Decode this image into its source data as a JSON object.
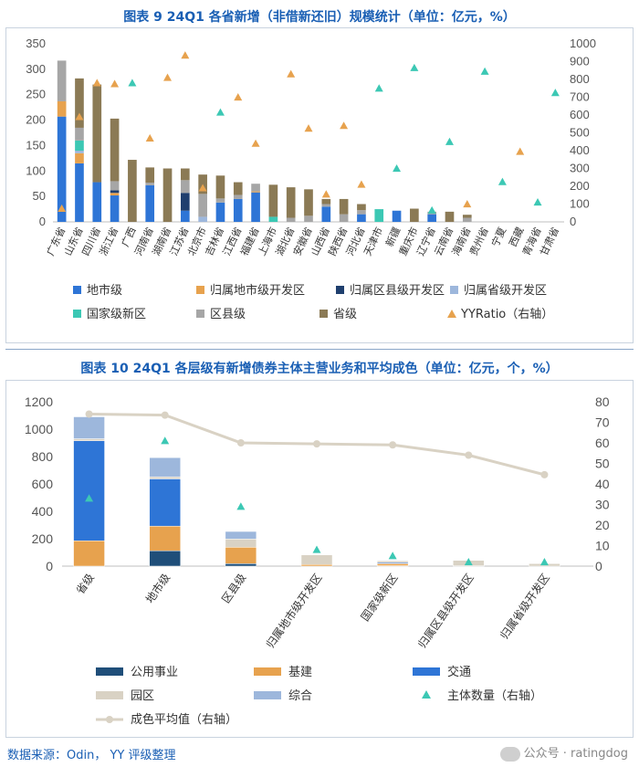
{
  "titles": {
    "chart1": "图表 9 24Q1 各省新增（非借新还旧）规模统计（单位：亿元，%）",
    "chart2": "图表 10 24Q1 各层级有新增债券主体主营业务和平均成色（单位：亿元，个，%）"
  },
  "footer": {
    "source": "数据来源：Odin， YY 评级整理",
    "watermark": "公众号 · ratingdog"
  },
  "chart_data": [
    {
      "type": "bar",
      "stacked": true,
      "title": "图表 9 24Q1 各省新增（非借新还旧）规模统计（单位：亿元，%）",
      "categories": [
        "广东省",
        "山东省",
        "四川省",
        "浙江省",
        "广西",
        "河南省",
        "湖南省",
        "江苏省",
        "北京市",
        "吉林省",
        "江西省",
        "福建省",
        "上海市",
        "湖北省",
        "安徽省",
        "山西省",
        "陕西省",
        "河北省",
        "天津市",
        "新疆",
        "重庆市",
        "辽宁省",
        "云南省",
        "海南省",
        "贵州省",
        "宁夏",
        "西藏",
        "青海省",
        "甘肃省"
      ],
      "ylim": [
        0,
        350
      ],
      "yticks": [
        0,
        50,
        100,
        150,
        200,
        250,
        300,
        350
      ],
      "y2lim": [
        0,
        1000
      ],
      "y2ticks": [
        0,
        100,
        200,
        300,
        400,
        500,
        600,
        700,
        800,
        900,
        1000
      ],
      "legend_position": "bottom",
      "series": [
        {
          "name": "地市级",
          "color": "#2e75d6",
          "values": [
            207,
            115,
            78,
            52,
            0,
            72,
            0,
            22,
            0,
            38,
            45,
            58,
            0,
            0,
            0,
            30,
            0,
            15,
            0,
            22,
            0,
            15,
            0,
            0,
            0,
            0,
            0,
            0,
            0
          ]
        },
        {
          "name": "归属地市级开发区",
          "color": "#e7a24e",
          "values": [
            30,
            20,
            0,
            5,
            0,
            0,
            0,
            0,
            0,
            0,
            0,
            2,
            0,
            0,
            0,
            0,
            0,
            0,
            0,
            0,
            0,
            0,
            0,
            0,
            0,
            0,
            0,
            0,
            0
          ]
        },
        {
          "name": "归属区县级开发区",
          "color": "#1f3f6e",
          "values": [
            0,
            0,
            0,
            5,
            0,
            0,
            0,
            35,
            0,
            0,
            0,
            0,
            0,
            0,
            0,
            0,
            0,
            0,
            0,
            0,
            0,
            0,
            0,
            0,
            0,
            0,
            0,
            0,
            0
          ]
        },
        {
          "name": "归属省级开发区",
          "color": "#9db7dc",
          "values": [
            0,
            5,
            0,
            0,
            0,
            0,
            0,
            0,
            10,
            0,
            0,
            0,
            0,
            0,
            0,
            0,
            0,
            0,
            0,
            0,
            0,
            0,
            0,
            0,
            0,
            0,
            0,
            0,
            0
          ]
        },
        {
          "name": "国家级新区",
          "color": "#3cc8b4",
          "values": [
            0,
            20,
            0,
            0,
            0,
            0,
            0,
            0,
            0,
            0,
            0,
            0,
            10,
            0,
            0,
            0,
            0,
            0,
            25,
            0,
            0,
            0,
            0,
            0,
            0,
            0,
            0,
            0,
            0
          ]
        },
        {
          "name": "区县级",
          "color": "#a6a6a6",
          "values": [
            80,
            25,
            0,
            18,
            0,
            5,
            0,
            25,
            45,
            8,
            8,
            15,
            0,
            8,
            12,
            5,
            15,
            8,
            0,
            0,
            0,
            5,
            0,
            8,
            0,
            0,
            0,
            0,
            0
          ]
        },
        {
          "name": "省级",
          "color": "#8b7a55",
          "values": [
            0,
            97,
            192,
            123,
            122,
            30,
            105,
            23,
            38,
            45,
            25,
            0,
            63,
            60,
            52,
            10,
            30,
            12,
            0,
            0,
            26,
            0,
            20,
            6,
            0,
            0,
            0,
            0,
            0
          ]
        }
      ],
      "line_series": {
        "name": "YYRatio（右轴）",
        "axis": "right",
        "color": "#e7a24e",
        "marker": "triangle",
        "values": [
          75,
          590,
          780,
          775,
          null,
          470,
          810,
          935,
          190,
          null,
          700,
          440,
          null,
          830,
          525,
          155,
          540,
          210,
          null,
          null,
          null,
          null,
          null,
          100,
          null,
          null,
          395,
          null,
          null
        ]
      },
      "extra_series": {
        "name": "国家级新区",
        "axis": "right",
        "color": "#3cc8b4",
        "marker": "triangle",
        "values": [
          null,
          null,
          null,
          null,
          780,
          null,
          null,
          null,
          null,
          615,
          null,
          null,
          null,
          null,
          null,
          null,
          null,
          null,
          750,
          300,
          865,
          65,
          450,
          null,
          845,
          225,
          null,
          110,
          725
        ]
      }
    },
    {
      "type": "bar",
      "stacked": true,
      "title": "图表 10 24Q1 各层级有新增债券主体主营业务和平均成色（单位：亿元，个，%）",
      "categories": [
        "省级",
        "地市级",
        "区县级",
        "归属地市级开发区",
        "国家级新区",
        "归属区县级开发区",
        "归属省级开发区"
      ],
      "ylim": [
        0,
        1200
      ],
      "yticks": [
        0,
        200,
        400,
        600,
        800,
        1000,
        1200
      ],
      "y2lim": [
        0,
        80
      ],
      "y2ticks": [
        0,
        10,
        20,
        30,
        40,
        50,
        60,
        70,
        80
      ],
      "legend_position": "bottom",
      "series": [
        {
          "name": "公用事业",
          "color": "#1f4e79",
          "values": [
            0,
            112,
            18,
            0,
            3,
            0,
            0
          ]
        },
        {
          "name": "基建",
          "color": "#e7a24e",
          "values": [
            185,
            180,
            120,
            12,
            15,
            2,
            0
          ]
        },
        {
          "name": "交通",
          "color": "#2e75d6",
          "values": [
            730,
            345,
            0,
            0,
            8,
            0,
            0
          ]
        },
        {
          "name": "园区",
          "color": "#d9d2c4",
          "values": [
            15,
            15,
            60,
            70,
            12,
            40,
            18
          ]
        },
        {
          "name": "综合",
          "color": "#9db7dc",
          "values": [
            160,
            140,
            55,
            0,
            4,
            0,
            0
          ]
        }
      ],
      "scatter_series": {
        "name": "主体数量（右轴）",
        "axis": "right",
        "color": "#3cc8b4",
        "marker": "triangle",
        "values": [
          33,
          61,
          29,
          8,
          5,
          2,
          2
        ]
      },
      "line_series": {
        "name": "成色平均值（右轴）",
        "axis": "right",
        "color": "#d9d2c4",
        "marker": "circle",
        "values": [
          74,
          73.5,
          60,
          59.5,
          59,
          54,
          44.5
        ]
      }
    }
  ]
}
